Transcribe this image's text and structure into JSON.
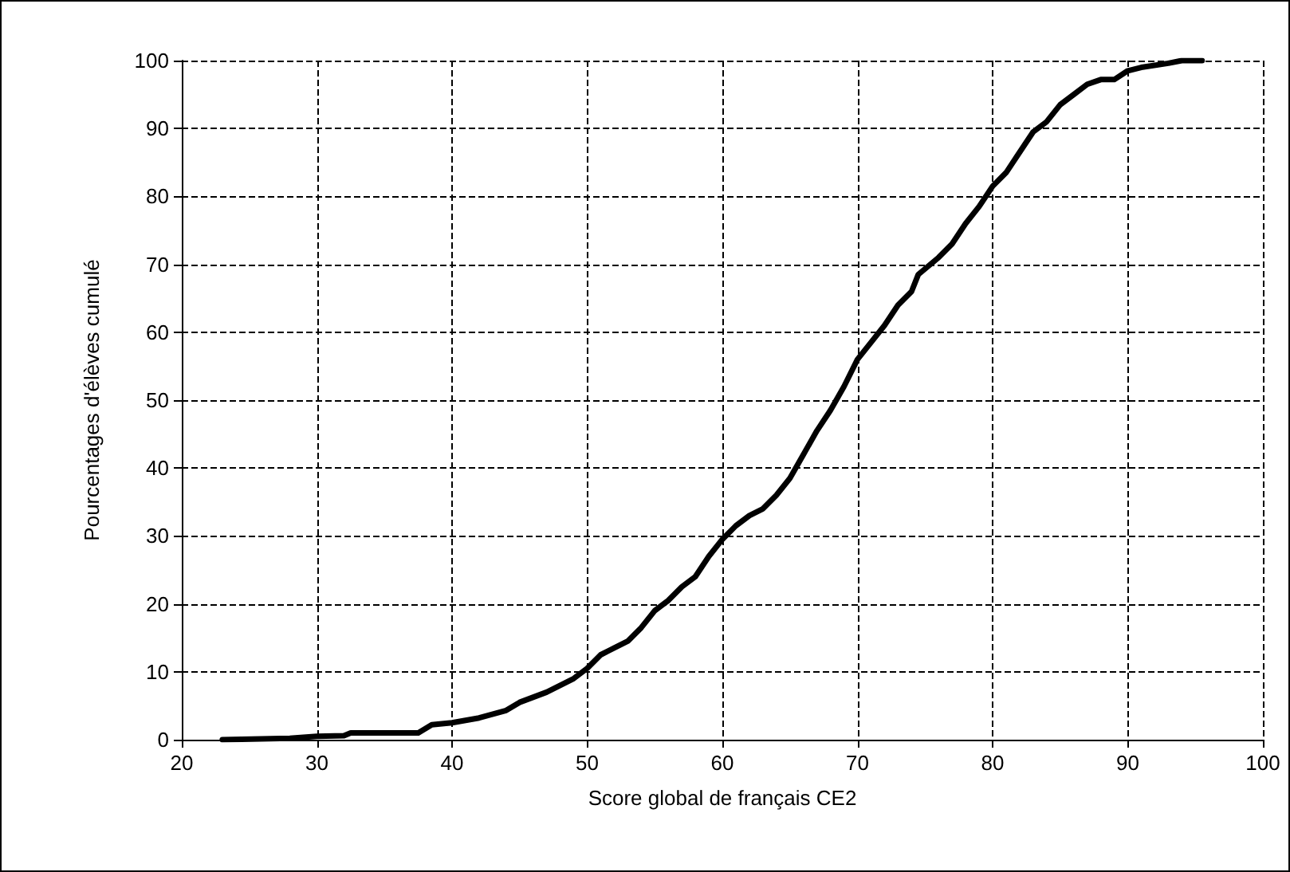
{
  "chart_data": {
    "type": "line",
    "xlabel": "Score global de français CE2",
    "ylabel": "Pourcentages d'élèves cumulé",
    "x": [
      23,
      28,
      30,
      32,
      32.5,
      37.5,
      38.5,
      40,
      42,
      44,
      45,
      47,
      49,
      50,
      51,
      52,
      53,
      54,
      55,
      56,
      57,
      58,
      59,
      60,
      61,
      62,
      63,
      64,
      65,
      66,
      67,
      68,
      69,
      70,
      71,
      72,
      73,
      74,
      74.5,
      76,
      77,
      78,
      79,
      80,
      81,
      82,
      83,
      84,
      85,
      86,
      87,
      88,
      89,
      90,
      91,
      93,
      94,
      95.5
    ],
    "series": [
      {
        "color": "#000000",
        "values": [
          0,
          0.2,
          0.5,
          0.6,
          1,
          1,
          2.2,
          2.5,
          3.2,
          4.3,
          5.5,
          7,
          9,
          10.5,
          12.5,
          13.5,
          14.5,
          16.5,
          19,
          20.5,
          22.5,
          24,
          27,
          29.5,
          31.5,
          33,
          34,
          36,
          38.5,
          42,
          45.5,
          48.5,
          52,
          56,
          58.5,
          61,
          64,
          66,
          68.5,
          71,
          73,
          76,
          78.5,
          81.5,
          83.5,
          86.5,
          89.5,
          91,
          93.5,
          95,
          96.5,
          97.2,
          97.2,
          98.5,
          99,
          99.6,
          100,
          100
        ]
      }
    ],
    "xlim": [
      20,
      100
    ],
    "xticks": [
      20,
      30,
      40,
      50,
      60,
      70,
      80,
      90,
      100
    ],
    "ylim": [
      0,
      100
    ],
    "yticks": [
      0,
      10,
      20,
      30,
      40,
      50,
      60,
      70,
      80,
      90,
      100
    ],
    "grid": true,
    "marker": "none",
    "line_style": "solid"
  }
}
